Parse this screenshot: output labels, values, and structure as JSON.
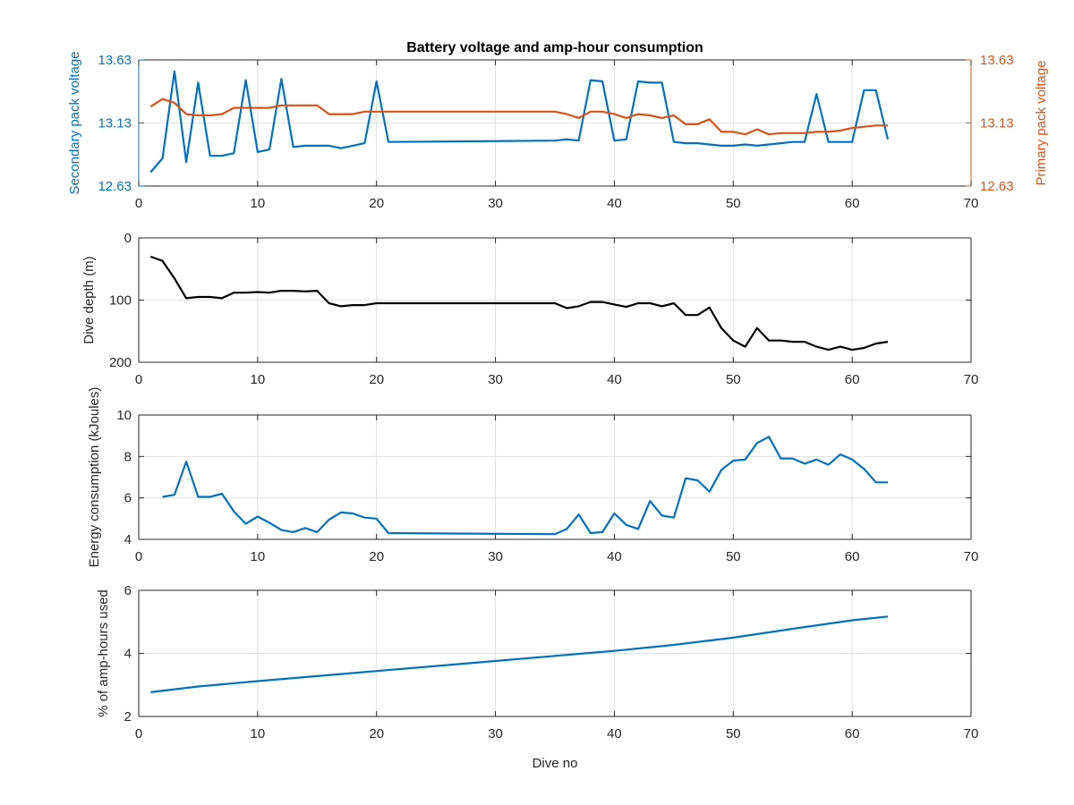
{
  "figure": {
    "title": "Battery voltage and amp-hour consumption",
    "xlabel": "Dive no"
  },
  "colors": {
    "blue": "#0072bd",
    "orange": "#d95319",
    "black": "#000000",
    "grid": "#e0e0e0",
    "axis": "#262626"
  },
  "chart_data": [
    {
      "type": "line",
      "title": "Battery voltage and amp-hour consumption",
      "xlabel": "",
      "ylabel": "Secondary pack voltage",
      "ylabel_right": "Primary pack voltage",
      "xlim": [
        0,
        70
      ],
      "ylim": [
        12.63,
        13.63
      ],
      "ylim_right": [
        12.63,
        13.63
      ],
      "xticks": [
        0,
        10,
        20,
        30,
        40,
        50,
        60,
        70
      ],
      "yticks": [
        12.63,
        13.13,
        13.63
      ],
      "yticks_right": [
        12.63,
        13.13,
        13.63
      ],
      "grid": true,
      "series": [
        {
          "axis": "left",
          "color": "#0072bd",
          "x": [
            1,
            2,
            3,
            4,
            5,
            6,
            7,
            8,
            9,
            10,
            11,
            12,
            13,
            14,
            15,
            16,
            17,
            18,
            19,
            20,
            21,
            35,
            36,
            37,
            38,
            39,
            40,
            41,
            42,
            43,
            44,
            45,
            46,
            47,
            48,
            49,
            50,
            51,
            52,
            53,
            54,
            55,
            56,
            57,
            58,
            59,
            60,
            61,
            62,
            63
          ],
          "y": [
            12.74,
            12.85,
            13.54,
            12.82,
            13.45,
            12.87,
            12.87,
            12.89,
            13.47,
            12.9,
            12.92,
            13.48,
            12.94,
            12.95,
            12.95,
            12.95,
            12.93,
            12.95,
            12.97,
            13.46,
            12.98,
            12.99,
            13.0,
            12.99,
            13.47,
            13.46,
            12.99,
            13.0,
            13.46,
            13.45,
            13.45,
            12.98,
            12.97,
            12.97,
            12.96,
            12.95,
            12.95,
            12.96,
            12.95,
            12.96,
            12.97,
            12.98,
            12.98,
            13.36,
            12.98,
            12.98,
            12.98,
            13.39,
            13.39,
            13.0
          ]
        },
        {
          "axis": "right",
          "color": "#d95319",
          "x": [
            1,
            2,
            3,
            4,
            5,
            6,
            7,
            8,
            9,
            10,
            11,
            12,
            13,
            14,
            15,
            16,
            17,
            18,
            19,
            20,
            21,
            35,
            36,
            37,
            38,
            39,
            40,
            41,
            42,
            43,
            44,
            45,
            46,
            47,
            48,
            49,
            50,
            51,
            52,
            53,
            54,
            55,
            56,
            57,
            58,
            59,
            60,
            61,
            62,
            63
          ],
          "y": [
            13.26,
            13.32,
            13.29,
            13.2,
            13.19,
            13.19,
            13.2,
            13.25,
            13.25,
            13.25,
            13.25,
            13.27,
            13.27,
            13.27,
            13.27,
            13.2,
            13.2,
            13.2,
            13.22,
            13.22,
            13.22,
            13.22,
            13.2,
            13.17,
            13.22,
            13.22,
            13.2,
            13.17,
            13.2,
            13.19,
            13.17,
            13.19,
            13.12,
            13.12,
            13.16,
            13.06,
            13.06,
            13.04,
            13.08,
            13.04,
            13.05,
            13.05,
            13.05,
            13.06,
            13.06,
            13.07,
            13.09,
            13.1,
            13.11,
            13.11
          ]
        }
      ]
    },
    {
      "type": "line",
      "xlabel": "",
      "ylabel": "Dive depth (m)",
      "xlim": [
        0,
        70
      ],
      "ylim": [
        0,
        200
      ],
      "y_reversed": true,
      "xticks": [
        0,
        10,
        20,
        30,
        40,
        50,
        60,
        70
      ],
      "yticks": [
        0,
        100,
        200
      ],
      "grid": true,
      "series": [
        {
          "color": "#000000",
          "x": [
            1,
            2,
            3,
            4,
            5,
            6,
            7,
            8,
            9,
            10,
            11,
            12,
            13,
            14,
            15,
            16,
            17,
            18,
            19,
            20,
            21,
            35,
            36,
            37,
            38,
            39,
            40,
            41,
            42,
            43,
            44,
            45,
            46,
            47,
            48,
            49,
            50,
            51,
            52,
            53,
            54,
            55,
            56,
            57,
            58,
            59,
            60,
            61,
            62,
            63
          ],
          "y": [
            30,
            37,
            65,
            97,
            95,
            95,
            97,
            88,
            88,
            87,
            88,
            85,
            85,
            86,
            85,
            105,
            110,
            108,
            108,
            105,
            105,
            105,
            113,
            110,
            103,
            103,
            107,
            111,
            105,
            105,
            110,
            105,
            124,
            124,
            112,
            145,
            165,
            175,
            145,
            165,
            165,
            167,
            167,
            175,
            180,
            175,
            180,
            177,
            170,
            167
          ]
        }
      ]
    },
    {
      "type": "line",
      "xlabel": "",
      "ylabel": "Energy consumption (kJoules)",
      "xlim": [
        0,
        70
      ],
      "ylim": [
        4,
        10
      ],
      "xticks": [
        0,
        10,
        20,
        30,
        40,
        50,
        60,
        70
      ],
      "yticks": [
        4,
        6,
        8,
        10
      ],
      "grid": true,
      "series": [
        {
          "color": "#0072bd",
          "x": [
            2,
            3,
            4,
            5,
            6,
            7,
            8,
            9,
            10,
            11,
            12,
            13,
            14,
            15,
            16,
            17,
            18,
            19,
            20,
            21,
            35,
            36,
            37,
            38,
            39,
            40,
            41,
            42,
            43,
            44,
            45,
            46,
            47,
            48,
            49,
            50,
            51,
            52,
            53,
            54,
            55,
            56,
            57,
            58,
            59,
            60,
            61,
            62,
            63
          ],
          "y": [
            6.05,
            6.15,
            7.75,
            6.05,
            6.05,
            6.2,
            5.35,
            4.75,
            5.1,
            4.8,
            4.45,
            4.35,
            4.55,
            4.35,
            4.95,
            5.3,
            5.25,
            5.05,
            5.0,
            4.3,
            4.25,
            4.5,
            5.2,
            4.3,
            4.35,
            5.25,
            4.7,
            4.5,
            5.85,
            5.15,
            5.05,
            6.95,
            6.85,
            6.3,
            7.35,
            7.8,
            7.85,
            8.65,
            8.95,
            7.9,
            7.9,
            7.65,
            7.85,
            7.6,
            8.1,
            7.85,
            7.4,
            6.75,
            6.75
          ]
        }
      ]
    },
    {
      "type": "line",
      "xlabel": "Dive no",
      "ylabel": "% of amp-hours used",
      "xlim": [
        0,
        70
      ],
      "ylim": [
        2,
        6
      ],
      "xticks": [
        0,
        10,
        20,
        30,
        40,
        50,
        60,
        70
      ],
      "yticks": [
        2,
        4,
        6
      ],
      "grid": true,
      "series": [
        {
          "color": "#0072bd",
          "x": [
            1,
            5,
            10,
            15,
            20,
            25,
            30,
            35,
            40,
            45,
            50,
            55,
            60,
            63
          ],
          "y": [
            2.77,
            2.95,
            3.12,
            3.28,
            3.44,
            3.6,
            3.76,
            3.92,
            4.08,
            4.27,
            4.5,
            4.78,
            5.05,
            5.17
          ]
        }
      ]
    }
  ]
}
